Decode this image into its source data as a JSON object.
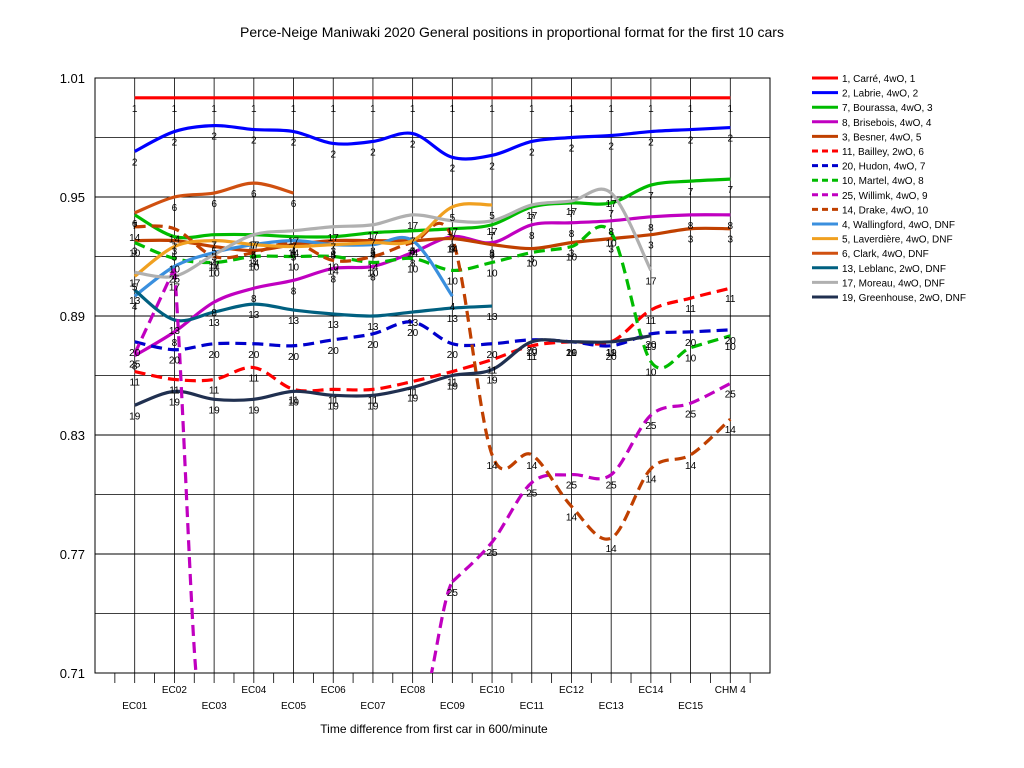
{
  "chart_data": {
    "type": "line",
    "title": "Perce-Neige Maniwaki 2020  General positions in proportional format for the first 10 cars",
    "xlabel": "Time difference from first car in 600/minute",
    "ylabel": "",
    "ylim": [
      0.71,
      1.01
    ],
    "yticks": [
      "1.01",
      "0.95",
      "0.89",
      "0.83",
      "0.77",
      "0.71"
    ],
    "grid": true,
    "legend_position": "right",
    "categories": [
      "EC01",
      "EC02",
      "EC03",
      "EC04",
      "EC05",
      "EC06",
      "EC07",
      "EC08",
      "EC09",
      "EC10",
      "EC11",
      "EC12",
      "EC13",
      "EC14",
      "EC15",
      "CHM 4"
    ],
    "series": [
      {
        "name": "1, Carré, 4wO, 1",
        "color": "#ff0000",
        "dash": false,
        "label": "1",
        "values": [
          1.0,
          1.0,
          1.0,
          1.0,
          1.0,
          1.0,
          1.0,
          1.0,
          1.0,
          1.0,
          1.0,
          1.0,
          1.0,
          1.0,
          1.0,
          1.0
        ]
      },
      {
        "name": "2, Labrie, 4wO, 2",
        "color": "#0000ff",
        "dash": false,
        "label": "2",
        "values": [
          0.973,
          0.983,
          0.986,
          0.984,
          0.983,
          0.977,
          0.978,
          0.982,
          0.97,
          0.971,
          0.978,
          0.98,
          0.981,
          0.983,
          0.984,
          0.985
        ]
      },
      {
        "name": "7, Bourassa, 4wO, 3",
        "color": "#00bb00",
        "dash": false,
        "label": "7",
        "values": [
          0.941,
          0.93,
          0.931,
          0.931,
          0.93,
          0.93,
          0.932,
          0.933,
          0.934,
          0.936,
          0.945,
          0.947,
          0.947,
          0.956,
          0.958,
          0.959
        ]
      },
      {
        "name": "8, Brisebois, 4wO, 4",
        "color": "#c000c0",
        "dash": false,
        "label": "8",
        "values": [
          0.87,
          0.882,
          0.897,
          0.904,
          0.908,
          0.914,
          0.915,
          0.922,
          0.93,
          0.927,
          0.936,
          0.937,
          0.938,
          0.94,
          0.941,
          0.941
        ]
      },
      {
        "name": "3, Besner, 4wO, 5",
        "color": "#c04000",
        "dash": false,
        "label": "3",
        "values": [
          0.928,
          0.928,
          0.925,
          0.923,
          0.926,
          0.928,
          0.928,
          0.928,
          0.929,
          0.926,
          0.924,
          0.927,
          0.929,
          0.931,
          0.934,
          0.934
        ]
      },
      {
        "name": "11, Bailley, 2wO, 6",
        "color": "#ff0000",
        "dash": true,
        "label": "11",
        "values": [
          0.862,
          0.858,
          0.858,
          0.864,
          0.853,
          0.853,
          0.853,
          0.857,
          0.862,
          0.868,
          0.875,
          0.877,
          0.877,
          0.893,
          0.899,
          0.904
        ]
      },
      {
        "name": "20, Hudon, 4wO, 7",
        "color": "#0000cc",
        "dash": true,
        "label": "20",
        "values": [
          0.877,
          0.873,
          0.876,
          0.876,
          0.875,
          0.878,
          0.881,
          0.887,
          0.876,
          0.876,
          0.878,
          0.877,
          0.875,
          0.881,
          0.882,
          0.883
        ]
      },
      {
        "name": "10, Martel, 4wO, 8",
        "color": "#00bb00",
        "dash": true,
        "label": "10",
        "values": [
          0.927,
          0.919,
          0.917,
          0.92,
          0.92,
          0.92,
          0.917,
          0.919,
          0.913,
          0.917,
          0.922,
          0.925,
          0.932,
          0.867,
          0.874,
          0.88
        ]
      },
      {
        "name": "25, Willimk, 4wO, 9",
        "color": "#c000c0",
        "dash": true,
        "label": "25",
        "values": [
          0.871,
          0.914,
          null,
          null,
          null,
          null,
          null,
          null,
          0.756,
          0.776,
          0.806,
          0.81,
          0.81,
          0.84,
          0.846,
          0.856
        ]
      },
      {
        "name": "14, Drake, 4wO, 10",
        "color": "#c04000",
        "dash": true,
        "label": "14",
        "values": [
          0.935,
          0.934,
          0.92,
          0.922,
          0.927,
          0.918,
          0.92,
          0.927,
          0.929,
          0.82,
          0.82,
          0.794,
          0.778,
          0.813,
          0.82,
          0.838
        ]
      },
      {
        "name": "4, Wallingford, 4wO, DNF",
        "color": "#3a8fde",
        "dash": false,
        "label": "4",
        "values": [
          0.9,
          0.915,
          0.922,
          0.926,
          0.928,
          0.926,
          0.926,
          0.928,
          0.9,
          null,
          null,
          null,
          null,
          null,
          null,
          null
        ]
      },
      {
        "name": "5, Laverdière, 4wO, DNF",
        "color": "#f0a020",
        "dash": false,
        "label": "5",
        "values": [
          0.91,
          0.925,
          0.928,
          0.926,
          0.925,
          0.926,
          0.927,
          0.928,
          0.945,
          0.946,
          null,
          null,
          null,
          null,
          null,
          null
        ]
      },
      {
        "name": "6, Clark, 4wO, DNF",
        "color": "#d05010",
        "dash": false,
        "label": "6",
        "values": [
          0.942,
          0.95,
          0.952,
          0.957,
          0.952,
          null,
          null,
          null,
          null,
          null,
          null,
          null,
          null,
          null,
          null,
          null
        ]
      },
      {
        "name": "13, Leblanc, 2wO, DNF",
        "color": "#006080",
        "dash": false,
        "label": "13",
        "values": [
          0.903,
          0.888,
          0.892,
          0.896,
          0.893,
          0.891,
          0.89,
          0.892,
          0.894,
          0.895,
          null,
          null,
          null,
          null,
          null,
          null
        ]
      },
      {
        "name": "17, Moreau, 4wO, DNF",
        "color": "#b0b0b0",
        "dash": false,
        "label": "17",
        "values": [
          0.912,
          0.91,
          0.921,
          0.931,
          0.933,
          0.935,
          0.936,
          0.941,
          0.938,
          0.938,
          0.946,
          0.948,
          0.952,
          0.913,
          null,
          null
        ]
      },
      {
        "name": "19, Greenhouse, 2wO, DNF",
        "color": "#203050",
        "dash": false,
        "label": "19",
        "values": [
          0.845,
          0.852,
          0.848,
          0.848,
          0.852,
          0.85,
          0.85,
          0.854,
          0.86,
          0.863,
          0.877,
          0.877,
          0.877,
          0.88,
          null,
          null
        ]
      }
    ]
  }
}
